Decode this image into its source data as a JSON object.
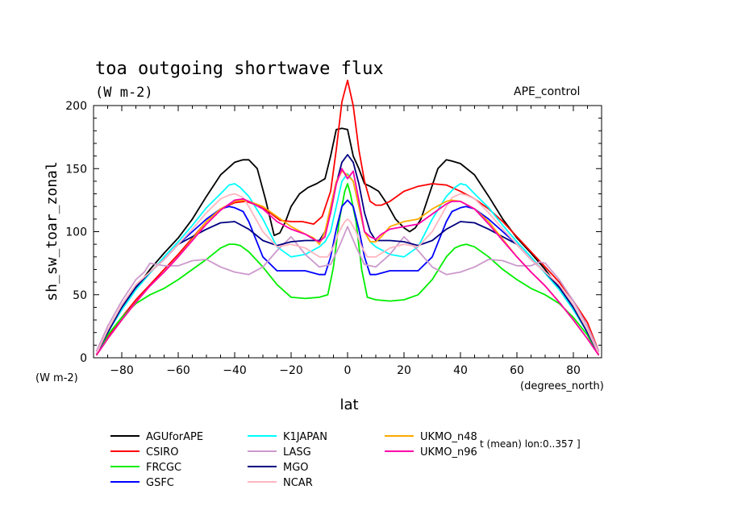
{
  "chart_data": {
    "type": "line",
    "title": "toa outgoing shortwave flux",
    "subtitle": "(W m-2)",
    "annotation": "APE_control",
    "ylabel": "sh_sw_toar_zonal",
    "xlabel": "lat",
    "y_unit_label": "(W m-2)",
    "x_unit_label": "(degrees_north)",
    "footnote": "t (mean) lon:0..357 ]",
    "xlim": [
      -90,
      90
    ],
    "ylim": [
      0,
      200
    ],
    "x_ticks": [
      -80,
      -60,
      -40,
      -20,
      0,
      20,
      40,
      60,
      80
    ],
    "y_ticks": [
      0,
      50,
      100,
      150,
      200
    ],
    "grid": false,
    "legend_position": "bottom",
    "series": [
      {
        "name": "AGUforAPE",
        "color": "#000000",
        "x": [
          -89,
          -85,
          -80,
          -75,
          -70,
          -65,
          -60,
          -55,
          -50,
          -45,
          -40,
          -37,
          -35,
          -32,
          -29,
          -26,
          -24,
          -22,
          -20,
          -17,
          -14,
          -11,
          -8,
          -6,
          -4,
          -2,
          0,
          2,
          4,
          6,
          8,
          11,
          14,
          17,
          20,
          22,
          24,
          26,
          29,
          32,
          35,
          37,
          40,
          45,
          50,
          55,
          60,
          65,
          70,
          75,
          80,
          85,
          89
        ],
        "y": [
          3,
          20,
          39,
          55,
          70,
          83,
          95,
          110,
          128,
          145,
          155,
          157,
          157,
          150,
          125,
          97,
          99,
          108,
          120,
          130,
          135,
          138,
          142,
          160,
          181,
          182,
          181,
          160,
          150,
          138,
          136,
          132,
          122,
          110,
          103,
          100,
          103,
          110,
          130,
          150,
          157,
          156,
          154,
          145,
          128,
          110,
          95,
          83,
          70,
          55,
          39,
          20,
          3
        ]
      },
      {
        "name": "CSIRO",
        "color": "#ff0000",
        "x": [
          -89,
          -85,
          -80,
          -75,
          -70,
          -65,
          -60,
          -55,
          -50,
          -45,
          -42,
          -40,
          -36,
          -32,
          -28,
          -24,
          -20,
          -16,
          -12,
          -9,
          -6,
          -4,
          -2,
          0,
          2,
          4,
          6,
          8,
          10,
          12,
          15,
          20,
          25,
          30,
          35,
          40,
          45,
          50,
          55,
          60,
          65,
          70,
          75,
          80,
          85,
          89
        ],
        "y": [
          2,
          16,
          32,
          46,
          58,
          70,
          82,
          95,
          108,
          118,
          121,
          123,
          124,
          121,
          116,
          109,
          108,
          108,
          106,
          112,
          132,
          165,
          203,
          220,
          200,
          165,
          140,
          124,
          121,
          121,
          124,
          132,
          136,
          138,
          137,
          132,
          126,
          118,
          108,
          96,
          84,
          72,
          60,
          45,
          28,
          5
        ]
      },
      {
        "name": "FRCGC",
        "color": "#00ee00",
        "x": [
          -89,
          -85,
          -80,
          -75,
          -70,
          -65,
          -60,
          -55,
          -50,
          -45,
          -42,
          -40,
          -38,
          -35,
          -30,
          -25,
          -20,
          -15,
          -10,
          -7,
          -5,
          -3,
          -1,
          0,
          1,
          3,
          5,
          7,
          10,
          15,
          20,
          25,
          30,
          35,
          38,
          40,
          42,
          45,
          50,
          55,
          60,
          65,
          70,
          75,
          80,
          85,
          89
        ],
        "y": [
          2,
          18,
          32,
          43,
          50,
          55,
          62,
          70,
          78,
          87,
          90,
          90,
          89,
          84,
          72,
          58,
          48,
          47,
          48,
          50,
          72,
          108,
          132,
          138,
          130,
          108,
          70,
          48,
          46,
          45,
          46,
          50,
          62,
          80,
          87,
          89,
          90,
          88,
          80,
          70,
          62,
          55,
          50,
          43,
          32,
          18,
          2
        ]
      },
      {
        "name": "GSFC",
        "color": "#0000ff",
        "x": [
          -89,
          -85,
          -80,
          -75,
          -70,
          -65,
          -60,
          -55,
          -50,
          -45,
          -42,
          -40,
          -37,
          -35,
          -30,
          -25,
          -20,
          -15,
          -10,
          -8,
          -6,
          -4,
          -2,
          0,
          2,
          4,
          6,
          8,
          10,
          15,
          20,
          25,
          30,
          35,
          37,
          40,
          42,
          45,
          50,
          55,
          60,
          65,
          70,
          75,
          80,
          85,
          89
        ],
        "y": [
          3,
          20,
          40,
          56,
          68,
          78,
          90,
          100,
          110,
          118,
          120,
          119,
          116,
          108,
          80,
          69,
          69,
          69,
          66,
          66,
          80,
          102,
          120,
          125,
          120,
          102,
          80,
          66,
          66,
          69,
          69,
          69,
          80,
          108,
          116,
          119,
          120,
          118,
          110,
          100,
          90,
          78,
          68,
          56,
          40,
          20,
          3
        ]
      },
      {
        "name": "K1JAPAN",
        "color": "#00ffff",
        "x": [
          -89,
          -85,
          -80,
          -75,
          -70,
          -65,
          -60,
          -55,
          -50,
          -45,
          -42,
          -40,
          -38,
          -35,
          -30,
          -25,
          -20,
          -15,
          -10,
          -8,
          -6,
          -4,
          -2,
          0,
          2,
          4,
          6,
          8,
          10,
          15,
          20,
          25,
          30,
          35,
          38,
          40,
          42,
          45,
          50,
          55,
          60,
          65,
          70,
          75,
          80,
          85,
          89
        ],
        "y": [
          3,
          20,
          38,
          54,
          67,
          80,
          92,
          105,
          119,
          130,
          137,
          138,
          135,
          128,
          110,
          88,
          80,
          82,
          88,
          92,
          100,
          120,
          140,
          146,
          140,
          120,
          100,
          92,
          88,
          82,
          80,
          88,
          110,
          128,
          135,
          138,
          137,
          130,
          119,
          105,
          92,
          80,
          67,
          54,
          38,
          20,
          3
        ]
      },
      {
        "name": "LASG",
        "color": "#cc99cc",
        "x": [
          -89,
          -85,
          -80,
          -75,
          -72,
          -70,
          -65,
          -60,
          -55,
          -50,
          -45,
          -40,
          -35,
          -30,
          -25,
          -20,
          -15,
          -10,
          -6,
          -3,
          0,
          3,
          6,
          10,
          15,
          20,
          25,
          30,
          35,
          40,
          45,
          50,
          55,
          60,
          65,
          68,
          70,
          75,
          80,
          85,
          89
        ],
        "y": [
          5,
          25,
          45,
          62,
          68,
          75,
          73,
          73,
          77,
          78,
          72,
          68,
          66,
          72,
          85,
          96,
          82,
          72,
          74,
          88,
          104,
          88,
          74,
          72,
          82,
          96,
          85,
          72,
          66,
          68,
          72,
          78,
          77,
          73,
          73,
          76,
          75,
          62,
          45,
          25,
          5
        ]
      },
      {
        "name": "MGO",
        "color": "#000080",
        "x": [
          -89,
          -85,
          -80,
          -75,
          -70,
          -65,
          -60,
          -55,
          -50,
          -45,
          -40,
          -35,
          -30,
          -25,
          -20,
          -15,
          -10,
          -8,
          -6,
          -4,
          -2,
          0,
          2,
          4,
          6,
          8,
          10,
          15,
          20,
          25,
          30,
          35,
          40,
          45,
          50,
          55,
          60,
          65,
          70,
          75,
          80,
          85,
          89
        ],
        "y": [
          3,
          20,
          40,
          56,
          68,
          78,
          90,
          96,
          102,
          107,
          108,
          102,
          93,
          89,
          92,
          93,
          93,
          100,
          115,
          138,
          155,
          161,
          155,
          138,
          115,
          100,
          93,
          93,
          92,
          89,
          93,
          102,
          108,
          107,
          102,
          96,
          90,
          78,
          68,
          56,
          40,
          20,
          3
        ]
      },
      {
        "name": "NCAR",
        "color": "#ffb6c1",
        "x": [
          -89,
          -85,
          -80,
          -75,
          -70,
          -65,
          -60,
          -55,
          -50,
          -45,
          -42,
          -40,
          -37,
          -35,
          -30,
          -25,
          -20,
          -15,
          -10,
          -7,
          -5,
          -3,
          -1,
          0,
          1,
          3,
          5,
          7,
          10,
          15,
          20,
          25,
          30,
          35,
          37,
          40,
          42,
          45,
          50,
          55,
          60,
          65,
          70,
          75,
          80,
          85,
          89
        ],
        "y": [
          3,
          22,
          42,
          58,
          68,
          78,
          90,
          102,
          115,
          126,
          129,
          130,
          127,
          120,
          100,
          88,
          90,
          87,
          80,
          80,
          88,
          100,
          108,
          110,
          108,
          100,
          88,
          80,
          80,
          87,
          90,
          88,
          100,
          120,
          127,
          130,
          129,
          126,
          115,
          102,
          90,
          78,
          68,
          58,
          42,
          22,
          3
        ]
      },
      {
        "name": "UKMO_n48",
        "color": "#ffaa00",
        "x": [
          -89,
          -85,
          -80,
          -75,
          -70,
          -65,
          -60,
          -55,
          -50,
          -45,
          -40,
          -37,
          -35,
          -30,
          -25,
          -20,
          -15,
          -12,
          -10,
          -8,
          -6,
          -4,
          -2,
          0,
          2,
          4,
          6,
          8,
          10,
          12,
          15,
          20,
          25,
          30,
          35,
          37,
          40,
          45,
          50,
          55,
          60,
          65,
          70,
          75,
          80,
          85,
          89
        ],
        "y": [
          2,
          15,
          30,
          44,
          57,
          68,
          80,
          94,
          108,
          118,
          124,
          125,
          124,
          120,
          112,
          104,
          98,
          95,
          90,
          100,
          120,
          140,
          148,
          145,
          140,
          120,
          100,
          92,
          92,
          96,
          104,
          108,
          110,
          118,
          124,
          125,
          124,
          118,
          108,
          94,
          80,
          68,
          57,
          44,
          30,
          15,
          2
        ]
      },
      {
        "name": "UKMO_n96",
        "color": "#ff00aa",
        "x": [
          -89,
          -85,
          -80,
          -75,
          -70,
          -65,
          -60,
          -55,
          -50,
          -45,
          -40,
          -37,
          -35,
          -30,
          -25,
          -20,
          -15,
          -12,
          -10,
          -8,
          -6,
          -4,
          -2,
          0,
          2,
          4,
          6,
          8,
          10,
          12,
          15,
          20,
          25,
          30,
          35,
          37,
          40,
          45,
          50,
          55,
          60,
          65,
          70,
          75,
          80,
          85,
          89
        ],
        "y": [
          2,
          15,
          30,
          44,
          57,
          68,
          80,
          93,
          106,
          117,
          125,
          126,
          124,
          118,
          108,
          102,
          98,
          94,
          92,
          96,
          115,
          138,
          150,
          142,
          148,
          125,
          100,
          96,
          94,
          98,
          102,
          104,
          106,
          114,
          122,
          124,
          124,
          118,
          106,
          93,
          80,
          68,
          57,
          44,
          30,
          15,
          2
        ]
      }
    ]
  }
}
